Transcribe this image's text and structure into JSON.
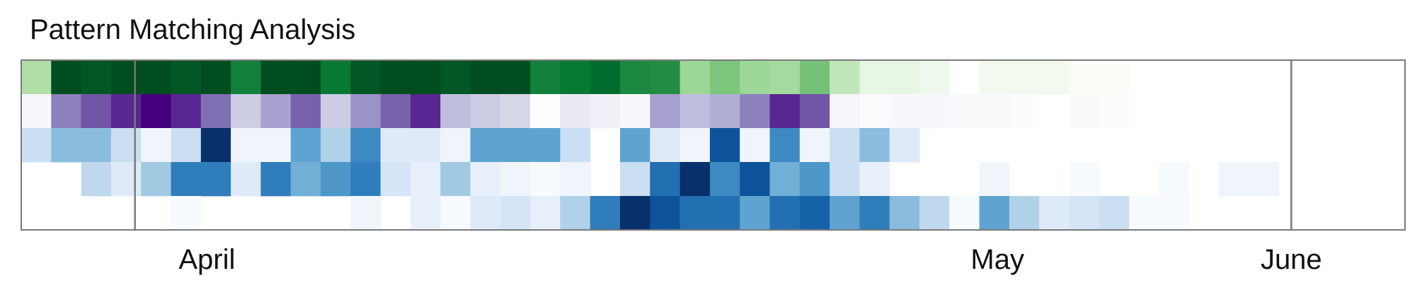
{
  "chart_data": {
    "type": "heatmap",
    "title": "Pattern Matching Analysis",
    "x_axis": {
      "unit": "day",
      "start": "2024-03-26",
      "end": "2024-06-07",
      "tick_labels": [
        "April",
        "May",
        "June"
      ],
      "tick_dates": [
        "2024-04-01",
        "2024-05-01",
        "2024-06-01"
      ],
      "month_boundaries": [
        "2024-04-01",
        "2024-06-01"
      ]
    },
    "rows": [
      {
        "colormap": "Greens",
        "intensities": [
          0.35,
          1.0,
          0.97,
          1.0,
          1.0,
          0.97,
          1.0,
          0.8,
          1.0,
          1.0,
          0.85,
          0.97,
          1.0,
          1.0,
          0.97,
          1.0,
          1.0,
          0.8,
          0.85,
          0.9,
          0.75,
          0.72,
          0.4,
          0.48,
          0.4,
          0.38,
          0.5,
          0.3,
          0.15,
          0.15,
          0.12,
          0.0,
          0.1,
          0.1,
          0.1,
          0.05,
          0.05,
          0,
          0,
          0,
          0,
          0,
          0,
          0,
          0
        ]
      },
      {
        "colormap": "Purples",
        "intensities": [
          0.1,
          0.6,
          0.75,
          0.9,
          1.0,
          0.9,
          0.65,
          0.35,
          0.5,
          0.7,
          0.35,
          0.55,
          0.7,
          0.9,
          0.4,
          0.35,
          0.3,
          0.03,
          0.2,
          0.15,
          0.1,
          0.5,
          0.4,
          0.45,
          0.6,
          0.9,
          0.75,
          0.12,
          0.06,
          0.1,
          0.1,
          0.07,
          0.07,
          0.04,
          0.0,
          0.07,
          0.04,
          0,
          0,
          0,
          0,
          0,
          0,
          0,
          0
        ]
      },
      {
        "colormap": "Blues",
        "intensities": [
          0.3,
          0.5,
          0.5,
          0.3,
          0.1,
          0.3,
          1.0,
          0.1,
          0.1,
          0.6,
          0.4,
          0.7,
          0.2,
          0.2,
          0.1,
          0.6,
          0.6,
          0.6,
          0.3,
          0.0,
          0.6,
          0.2,
          0.1,
          0.9,
          0.1,
          0.7,
          0.1,
          0.3,
          0.5,
          0.2,
          0,
          0,
          0,
          0,
          0,
          0,
          0,
          0,
          0,
          0,
          0,
          0,
          0,
          0,
          0
        ]
      },
      {
        "colormap": "Blues",
        "intensities": [
          0.0,
          0.0,
          0.35,
          0.2,
          0.45,
          0.75,
          0.75,
          0.2,
          0.75,
          0.55,
          0.65,
          0.75,
          0.25,
          0.15,
          0.45,
          0.15,
          0.1,
          0.05,
          0.1,
          0.0,
          0.3,
          0.8,
          1.0,
          0.7,
          0.9,
          0.55,
          0.65,
          0.3,
          0.15,
          0.0,
          0.0,
          0.0,
          0.1,
          0.0,
          0.0,
          0.06,
          0.0,
          0.0,
          0.06,
          0.0,
          0.1,
          0.1,
          0.0,
          0.0,
          0.0
        ]
      },
      {
        "colormap": "Blues",
        "intensities": [
          0.0,
          0.0,
          0.0,
          0.0,
          0.0,
          0.05,
          0.0,
          0.0,
          0.0,
          0.0,
          0.0,
          0.1,
          0.0,
          0.15,
          0.05,
          0.2,
          0.25,
          0.15,
          0.4,
          0.75,
          1.0,
          0.9,
          0.8,
          0.8,
          0.6,
          0.8,
          0.85,
          0.6,
          0.75,
          0.5,
          0.35,
          0.05,
          0.6,
          0.4,
          0.2,
          0.25,
          0.3,
          0.05,
          0.05,
          0.0,
          0.0,
          0.0,
          0.0,
          0.0,
          0.0
        ]
      }
    ],
    "colormaps": {
      "Greens": [
        "#ffffff",
        "#f1f9ee",
        "#d8f0d2",
        "#b6e2ae",
        "#8ccf88",
        "#5cb565",
        "#2f9647",
        "#16853f",
        "#007130",
        "#004d1f"
      ],
      "Purples": [
        "#ffffff",
        "#f7f6fa",
        "#e8e6f2",
        "#d0d1e6",
        "#b3b1d6",
        "#9891c5",
        "#7c6ab0",
        "#6d4ea3",
        "#5a2b93",
        "#44007f"
      ],
      "Blues": [
        "#ffffff",
        "#eef4fc",
        "#dae8f6",
        "#c5dbf0",
        "#a4cae3",
        "#6faed6",
        "#4793c7",
        "#2775b5",
        "#0d57a1",
        "#08306b"
      ]
    },
    "grid": false,
    "legend": false
  }
}
